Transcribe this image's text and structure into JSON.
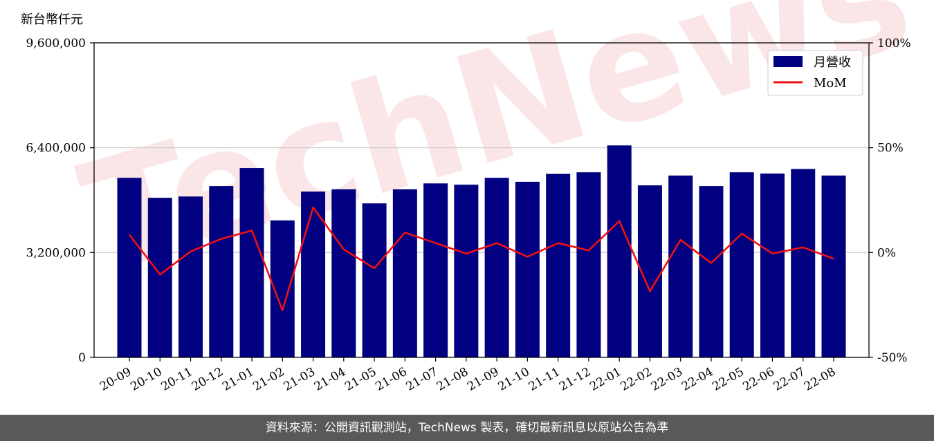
{
  "header": {
    "unit_label": "新台幣仟元"
  },
  "footer": {
    "source_text": "資料來源：公開資訊觀測站，TechNews 製表，確切最新訊息以原站公告為準"
  },
  "watermark": {
    "text": "TechNews"
  },
  "colors": {
    "bar": "#000080",
    "line": "#ee1111",
    "grid": "#cccccc",
    "footer_bg": "#595959"
  },
  "chart_data": {
    "type": "bar",
    "categories": [
      "20-09",
      "20-10",
      "20-11",
      "20-12",
      "21-01",
      "21-02",
      "21-03",
      "21-04",
      "21-05",
      "21-06",
      "21-07",
      "21-08",
      "21-09",
      "21-10",
      "21-11",
      "21-12",
      "22-01",
      "22-02",
      "22-03",
      "22-04",
      "22-05",
      "22-06",
      "22-07",
      "22-08"
    ],
    "series": [
      {
        "name": "月營收",
        "type": "bar",
        "axis": "left",
        "values": [
          5480000,
          4870000,
          4910000,
          5230000,
          5780000,
          4180000,
          5060000,
          5130000,
          4700000,
          5130000,
          5310000,
          5270000,
          5480000,
          5360000,
          5600000,
          5650000,
          6470000,
          5250000,
          5550000,
          5230000,
          5650000,
          5610000,
          5750000,
          5550000
        ]
      },
      {
        "name": "MoM",
        "type": "line",
        "axis": "right",
        "values": [
          8.5,
          -10.5,
          0.5,
          6.5,
          10.5,
          -27.5,
          21.5,
          1.5,
          -7.5,
          9.5,
          4.5,
          -0.5,
          4.5,
          -2,
          4.5,
          1,
          15,
          -18.5,
          6,
          -5,
          9,
          -0.5,
          2.5,
          -3
        ]
      }
    ],
    "y_left": {
      "ylim": [
        0,
        9600000
      ],
      "ticks": [
        0,
        3200000,
        6400000,
        9600000
      ],
      "tick_labels": [
        "0",
        "3,200,000",
        "6,400,000",
        "9,600,000"
      ]
    },
    "y_right": {
      "ylim": [
        -50,
        100
      ],
      "ticks": [
        -50,
        0,
        50,
        100
      ],
      "tick_labels": [
        "-50%",
        "0%",
        "50%",
        "100%"
      ]
    },
    "grid": "horizontal",
    "legend": {
      "placement": "top-right"
    }
  }
}
